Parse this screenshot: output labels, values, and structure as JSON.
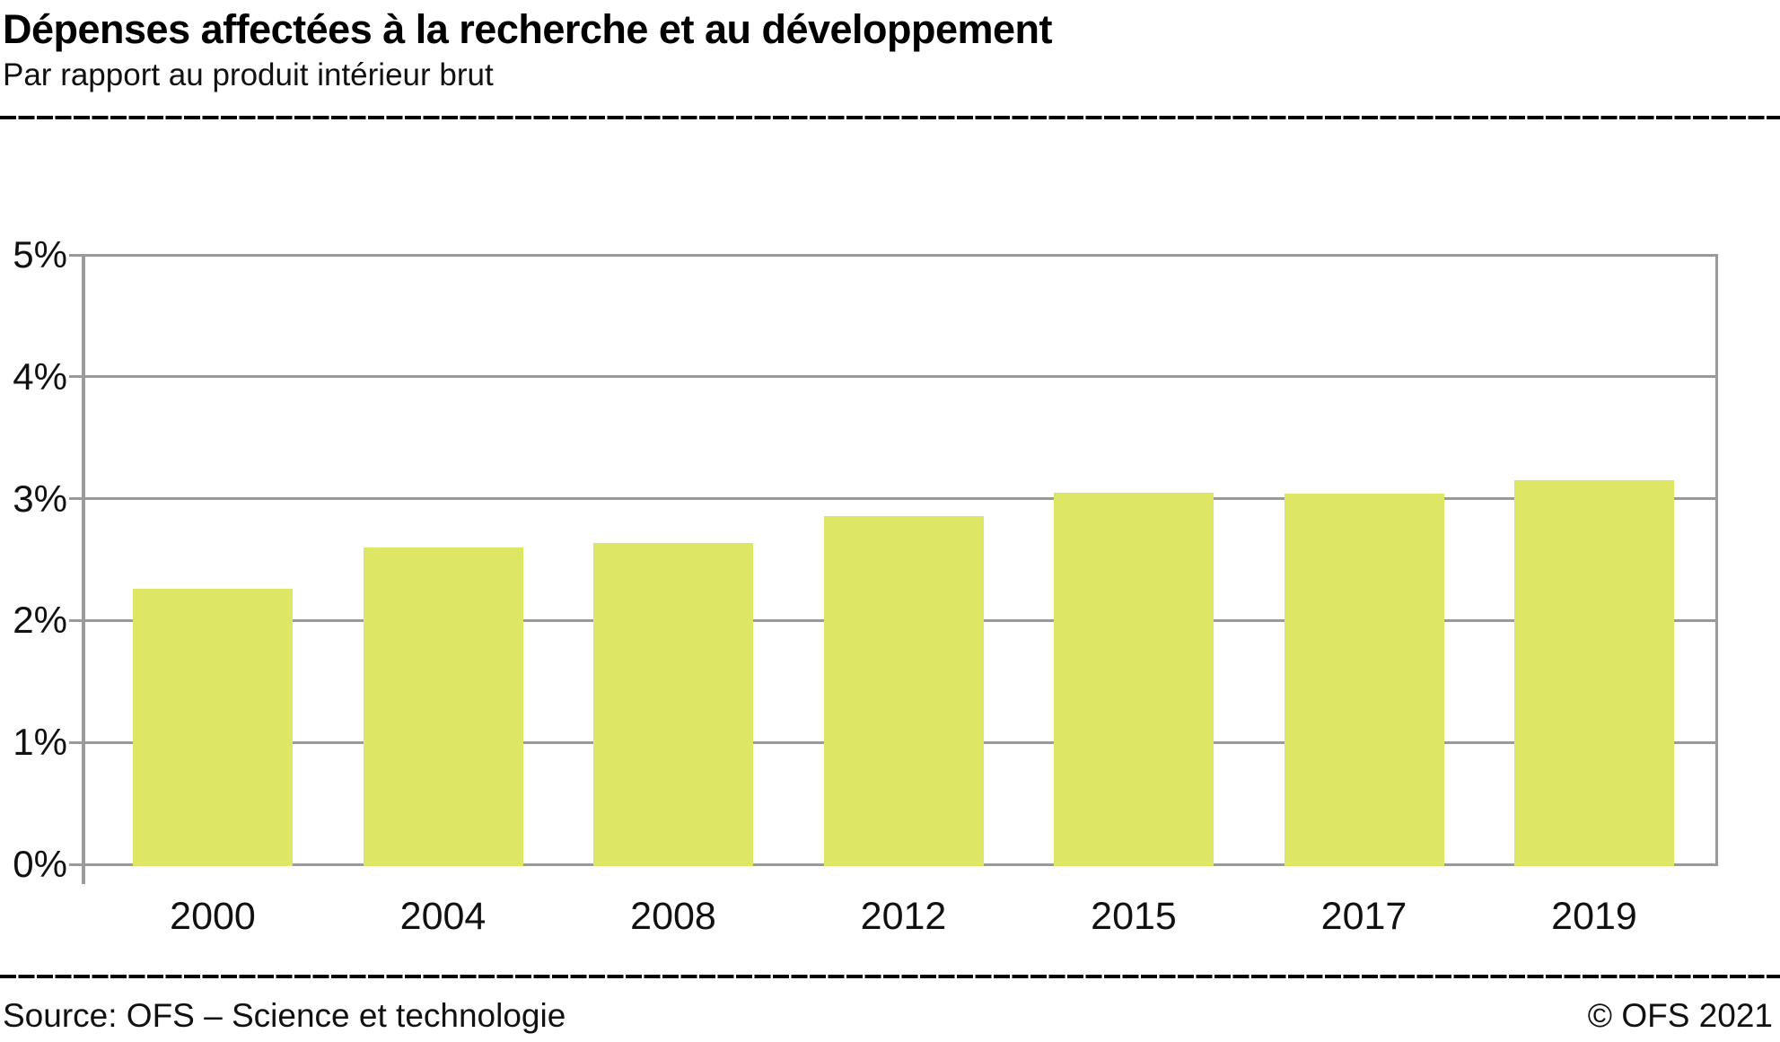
{
  "header": {
    "title": "Dépenses affectées à la recherche et au développement",
    "subtitle": "Par rapport au produit intérieur brut"
  },
  "footer": {
    "source": "Source: OFS – Science et technologie",
    "copyright": "© OFS 2021"
  },
  "colors": {
    "bar": "#dee765",
    "grid": "#9a9a9a",
    "text": "#111111",
    "divider": "#000000"
  },
  "chart_data": {
    "type": "bar",
    "title": "Dépenses affectées à la recherche et au développement",
    "subtitle": "Par rapport au produit intérieur brut",
    "categories": [
      "2000",
      "2004",
      "2008",
      "2012",
      "2015",
      "2017",
      "2019"
    ],
    "values": [
      2.26,
      2.6,
      2.64,
      2.86,
      3.05,
      3.04,
      3.15
    ],
    "unit": "%",
    "xlabel": "",
    "ylabel": "",
    "ylim": [
      0,
      5
    ],
    "y_ticks": [
      "0%",
      "1%",
      "2%",
      "3%",
      "4%",
      "5%"
    ],
    "grid": true,
    "legend": "none"
  }
}
